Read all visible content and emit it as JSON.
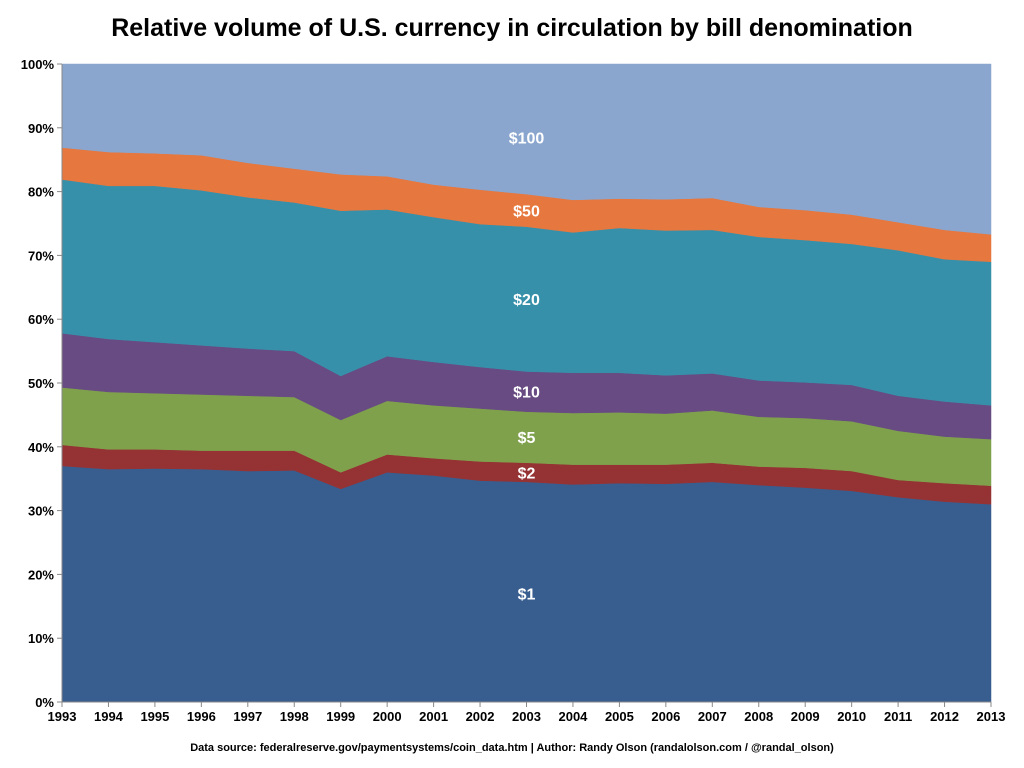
{
  "chart_data": {
    "type": "area",
    "stacked": true,
    "normalized": true,
    "title": "Relative volume of U.S. currency in circulation by bill denomination",
    "source": "Data source: federalreserve.gov/paymentsystems/coin_data.htm | Author: Randy Olson (randalolson.com / @randal_olson)",
    "xlabel": "",
    "ylabel": "",
    "ylim": [
      0,
      100
    ],
    "y_ticks": [
      "0%",
      "10%",
      "20%",
      "30%",
      "40%",
      "50%",
      "60%",
      "70%",
      "80%",
      "90%",
      "100%"
    ],
    "grid": false,
    "legend": "inline labels",
    "x": [
      1993,
      1994,
      1995,
      1996,
      1997,
      1998,
      1999,
      2000,
      2001,
      2002,
      2003,
      2004,
      2005,
      2006,
      2007,
      2008,
      2009,
      2010,
      2011,
      2012,
      2013
    ],
    "series": [
      {
        "name": "$1",
        "color": "#385d8f",
        "values": [
          37.0,
          36.5,
          36.6,
          36.5,
          36.2,
          36.3,
          33.4,
          36.0,
          35.5,
          34.7,
          34.5,
          34.1,
          34.3,
          34.2,
          34.5,
          34.0,
          33.6,
          33.1,
          32.1,
          31.4,
          31.0
        ]
      },
      {
        "name": "$2",
        "color": "#953234",
        "values": [
          3.3,
          3.1,
          3.0,
          2.9,
          3.2,
          3.1,
          2.6,
          2.8,
          2.7,
          3.0,
          3.0,
          3.1,
          2.9,
          3.0,
          3.0,
          2.9,
          3.1,
          3.1,
          2.7,
          2.9,
          2.9
        ]
      },
      {
        "name": "$5",
        "color": "#7fa14c",
        "values": [
          9.0,
          9.0,
          8.8,
          8.8,
          8.6,
          8.4,
          8.2,
          8.4,
          8.3,
          8.3,
          8.0,
          8.1,
          8.2,
          8.0,
          8.2,
          7.8,
          7.8,
          7.8,
          7.7,
          7.3,
          7.3
        ]
      },
      {
        "name": "$10",
        "color": "#674b82",
        "values": [
          8.5,
          8.3,
          8.0,
          7.7,
          7.4,
          7.2,
          6.9,
          7.0,
          6.8,
          6.5,
          6.3,
          6.3,
          6.2,
          6.0,
          5.8,
          5.7,
          5.6,
          5.7,
          5.5,
          5.5,
          5.3
        ]
      },
      {
        "name": "$20",
        "color": "#3790aa",
        "values": [
          24.1,
          24.0,
          24.5,
          24.3,
          23.7,
          23.3,
          25.9,
          23.0,
          22.7,
          22.4,
          22.7,
          22.0,
          22.7,
          22.7,
          22.5,
          22.5,
          22.3,
          22.1,
          22.8,
          22.3,
          22.5
        ]
      },
      {
        "name": "$50",
        "color": "#e6773e",
        "values": [
          5.0,
          5.3,
          5.1,
          5.5,
          5.4,
          5.3,
          5.7,
          5.2,
          5.1,
          5.4,
          5.1,
          5.1,
          4.6,
          4.9,
          5.0,
          4.7,
          4.7,
          4.6,
          4.4,
          4.6,
          4.3
        ]
      },
      {
        "name": "$100",
        "color": "#8aa6cf",
        "values": [
          13.1,
          13.8,
          14.0,
          14.3,
          15.5,
          16.4,
          17.3,
          17.6,
          18.9,
          19.7,
          20.4,
          21.3,
          21.1,
          21.2,
          21.0,
          22.4,
          22.9,
          23.6,
          24.8,
          26.0,
          26.7
        ]
      }
    ]
  }
}
